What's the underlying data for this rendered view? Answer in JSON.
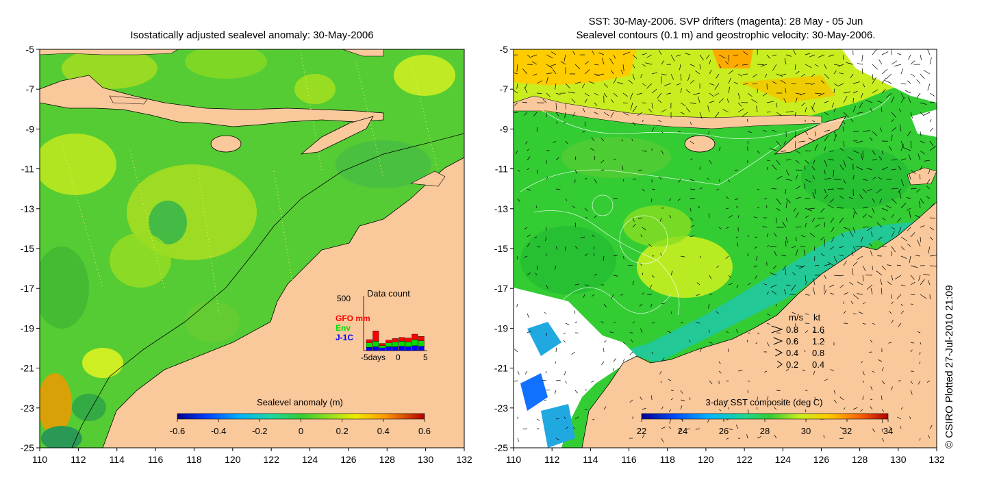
{
  "left_map": {
    "title": "Isostatically adjusted sealevel anomaly: 30-May-2006",
    "lon_ticks": [
      "110",
      "112",
      "114",
      "116",
      "118",
      "120",
      "122",
      "124",
      "126",
      "128",
      "130",
      "132"
    ],
    "lat_ticks": [
      "-5",
      "-7",
      "-9",
      "-11",
      "-13",
      "-15",
      "-17",
      "-19",
      "-21",
      "-23",
      "-25"
    ],
    "lon_range": [
      110,
      132
    ],
    "lat_range": [
      -25,
      -5
    ],
    "colorbar": {
      "title": "Sealevel anomaly (m)",
      "ticks": [
        "-0.6",
        "-0.4",
        "-0.2",
        "0",
        "0.2",
        "0.4",
        "0.6"
      ]
    },
    "data_count": {
      "title": "Data count",
      "y_max": "500",
      "x_start": "-5days",
      "x_mid": "0",
      "x_end": "5",
      "legend": [
        {
          "label": "GFO mm",
          "color": "#ff0000"
        },
        {
          "label": "Env",
          "color": "#00dd00"
        },
        {
          "label": "J-1C",
          "color": "#0000ff"
        }
      ],
      "bars": [
        {
          "j1c": 30,
          "env": 40,
          "gfo": 30
        },
        {
          "j1c": 35,
          "env": 50,
          "gfo": 95
        },
        {
          "j1c": 25,
          "env": 20,
          "gfo": 20
        },
        {
          "j1c": 35,
          "env": 35,
          "gfo": 25
        },
        {
          "j1c": 35,
          "env": 45,
          "gfo": 30
        },
        {
          "j1c": 40,
          "env": 45,
          "gfo": 35
        },
        {
          "j1c": 35,
          "env": 45,
          "gfo": 35
        },
        {
          "j1c": 45,
          "env": 55,
          "gfo": 50
        },
        {
          "j1c": 40,
          "env": 50,
          "gfo": 40
        }
      ]
    }
  },
  "right_map": {
    "title_line1": "SST: 30-May-2006. SVP drifters (magenta): 28 May - 05 Jun",
    "title_line2": "Sealevel contours (0.1 m) and geostrophic velocity: 30-May-2006.",
    "lon_ticks": [
      "110",
      "112",
      "114",
      "116",
      "118",
      "120",
      "122",
      "124",
      "126",
      "128",
      "130",
      "132"
    ],
    "lat_ticks": [
      "-5",
      "-7",
      "-9",
      "-11",
      "-13",
      "-15",
      "-17",
      "-19",
      "-21",
      "-23",
      "-25"
    ],
    "colorbar": {
      "title": "3-day SST composite (deg C)",
      "ticks": [
        "22",
        "24",
        "26",
        "28",
        "30",
        "32",
        "34"
      ]
    },
    "velocity_legend": {
      "header_ms": "m/s",
      "header_kt": "kt",
      "rows": [
        {
          "ms": "0.8",
          "kt": "1.6"
        },
        {
          "ms": "0.6",
          "kt": "1.2"
        },
        {
          "ms": "0.4",
          "kt": "0.8"
        },
        {
          "ms": "0.2",
          "kt": "0.4"
        }
      ]
    }
  },
  "credit": "© CSIRO Plotted 27-Jul-2010 21:09",
  "colors": {
    "land": "#f9c89b",
    "ocean_green": "#33cc33",
    "ocean_light": "#88dd22",
    "ocean_yellow": "#ccee22"
  }
}
